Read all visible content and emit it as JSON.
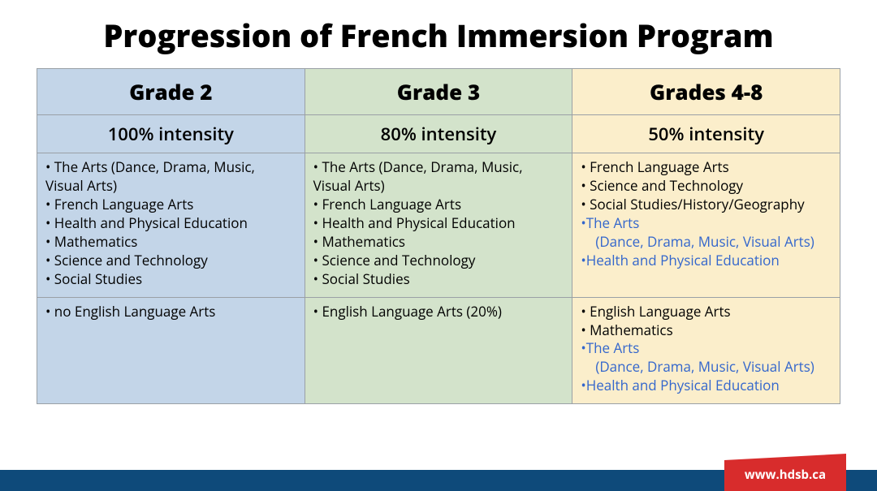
{
  "title": "Progression of French Immersion Program",
  "footer": {
    "url": "www.hdsb.ca",
    "bar_color": "#0e4a7a",
    "flag_color": "#d82c2c"
  },
  "colors": {
    "col_bg": [
      "#c3d5e8",
      "#d3e3cb",
      "#fbeecb"
    ],
    "border": "#9aa0a6",
    "link_blue": "#3366cc"
  },
  "columns": [
    {
      "header": "Grade 2",
      "intensity": "100% intensity",
      "subjects": [
        {
          "text": "• The Arts (Dance, Drama, Music, Visual Arts)"
        },
        {
          "text": "• French Language Arts"
        },
        {
          "text": "• Health and Physical Education"
        },
        {
          "text": "• Mathematics"
        },
        {
          "text": "• Science and Technology"
        },
        {
          "text": "• Social Studies"
        }
      ],
      "english": [
        {
          "text": "  • no English Language Arts"
        }
      ]
    },
    {
      "header": "Grade 3",
      "intensity": "80% intensity",
      "subjects": [
        {
          "text": "• The Arts (Dance, Drama, Music, Visual Arts)"
        },
        {
          "text": "• French Language Arts"
        },
        {
          "text": "• Health and Physical Education"
        },
        {
          "text": "• Mathematics"
        },
        {
          "text": "• Science and Technology"
        },
        {
          "text": "• Social Studies"
        }
      ],
      "english": [
        {
          "text": "• English Language Arts (20%)"
        }
      ]
    },
    {
      "header": "Grades 4-8",
      "intensity": "50% intensity",
      "subjects": [
        {
          "text": "• French Language Arts"
        },
        {
          "text": "• Science and Technology"
        },
        {
          "text": "• Social Studies/History/Geography"
        },
        {
          "text": "•The Arts",
          "blue": true
        },
        {
          "text": "   (Dance, Drama, Music, Visual Arts)",
          "blue": true,
          "sub": true
        },
        {
          "text": "•Health and Physical Education",
          "blue": true
        }
      ],
      "english": [
        {
          "text": " • English Language Arts"
        },
        {
          "text": " • Mathematics"
        },
        {
          "text": " •The Arts",
          "blue": true
        },
        {
          "text": "    (Dance, Drama, Music, Visual Arts)",
          "blue": true,
          "sub": true
        },
        {
          "text": "  •Health and Physical Education",
          "blue": true
        }
      ]
    }
  ]
}
